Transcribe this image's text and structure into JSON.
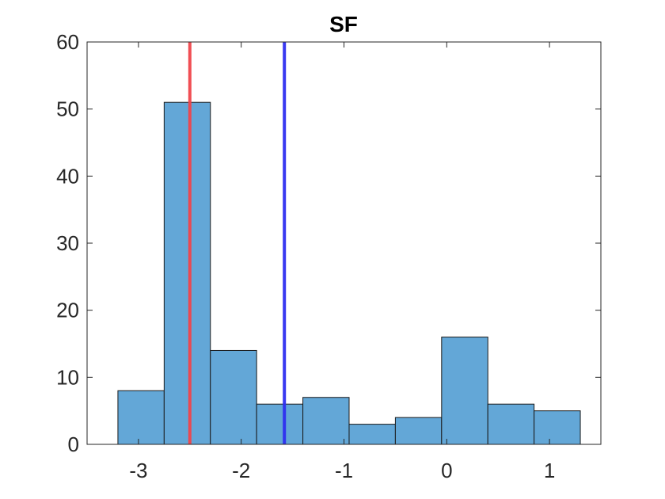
{
  "chart_data": {
    "type": "bar",
    "title": "SF",
    "xlabel": "",
    "ylabel": "",
    "xlim": [
      -3.5,
      1.5
    ],
    "ylim": [
      0,
      60
    ],
    "xticks": [
      -3,
      -2,
      -1,
      0,
      1
    ],
    "xtick_labels": [
      "-3",
      "-2",
      "-1",
      "0",
      "1"
    ],
    "yticks": [
      0,
      10,
      20,
      30,
      40,
      50,
      60
    ],
    "ytick_labels": [
      "0",
      "10",
      "20",
      "30",
      "40",
      "50",
      "60"
    ],
    "grid": false,
    "bins": [
      {
        "x0": -3.2,
        "x1": -2.75,
        "count": 8
      },
      {
        "x0": -2.75,
        "x1": -2.3,
        "count": 51
      },
      {
        "x0": -2.3,
        "x1": -1.85,
        "count": 14
      },
      {
        "x0": -1.85,
        "x1": -1.4,
        "count": 6
      },
      {
        "x0": -1.4,
        "x1": -0.95,
        "count": 7
      },
      {
        "x0": -0.95,
        "x1": -0.5,
        "count": 3
      },
      {
        "x0": -0.5,
        "x1": -0.05,
        "count": 4
      },
      {
        "x0": -0.05,
        "x1": 0.4,
        "count": 16
      },
      {
        "x0": 0.4,
        "x1": 0.85,
        "count": 6
      },
      {
        "x0": 0.85,
        "x1": 1.3,
        "count": 5
      }
    ],
    "reference_lines": [
      {
        "x": -2.5,
        "color": "#f0444b"
      },
      {
        "x": -1.58,
        "color": "#2e2ef0"
      }
    ],
    "colors": {
      "bar_fill": "#63a7d7",
      "bar_edge": "#1a1a1a",
      "axis": "#262626"
    }
  }
}
